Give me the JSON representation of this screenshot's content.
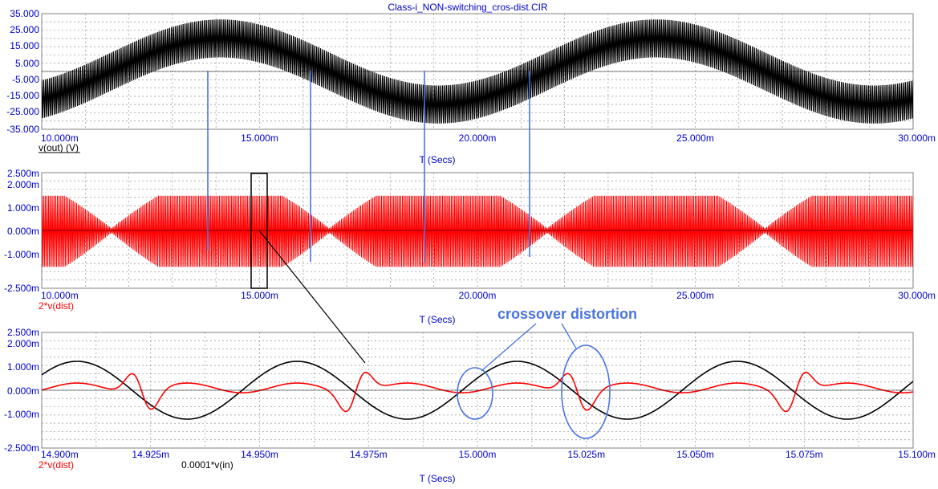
{
  "title": "Class-i_NON-switching_cros-dist.CIR",
  "colors": {
    "black": "#000000",
    "red": "#ff0000",
    "blue": "#0000cc",
    "annotation": "#4a74e0",
    "grid": "#909090"
  },
  "annotation": "crossover distortion",
  "chart_data": [
    {
      "type": "line",
      "xlabel": "T (Secs)",
      "xlim": [
        0.01,
        0.03
      ],
      "ylim": [
        -35,
        35
      ],
      "y_ticks": [
        "35.000",
        "25.000",
        "15.000",
        "5.000",
        "-5.000",
        "-15.000",
        "-25.000",
        "-35.000"
      ],
      "x_ticks": [
        "10.000m",
        "15.000m",
        "20.000m",
        "25.000m",
        "30.000m"
      ],
      "series": [
        {
          "name": "v(out) (V)",
          "color": "#000000",
          "envelope": {
            "center_amplitude": 20,
            "center_freq_hz": 100,
            "center_phase_deg": -90,
            "ripple_peak_to_peak": 20,
            "carrier": "dense"
          }
        }
      ]
    },
    {
      "type": "line",
      "xlabel": "T (Secs)",
      "xlim": [
        0.01,
        0.03
      ],
      "ylim": [
        -2.5,
        2.5
      ],
      "y_ticks": [
        "2.500m",
        "2.000m",
        "1.000m",
        "0.000m",
        "-1.000m",
        "-2.500m"
      ],
      "x_ticks": [
        "10.000m",
        "15.000m",
        "20.000m",
        "25.000m",
        "30.000m"
      ],
      "series": [
        {
          "name": "2*v(dist)",
          "color": "#ff0000",
          "envelope": {
            "max": 1.5,
            "min": 0.1,
            "carrier": "dense"
          }
        }
      ]
    },
    {
      "type": "line",
      "xlabel": "T (Secs)",
      "xlim": [
        0.0149,
        0.0151
      ],
      "ylim": [
        -2.5,
        2.5
      ],
      "y_ticks": [
        "2.500m",
        "2.000m",
        "1.000m",
        "0.000m",
        "-1.000m",
        "-2.500m"
      ],
      "x_ticks": [
        "14.900m",
        "14.925m",
        "14.950m",
        "14.975m",
        "15.000m",
        "15.025m",
        "15.050m",
        "15.075m",
        "15.100m"
      ],
      "series": [
        {
          "name": "2*v(dist)",
          "color": "#ff0000",
          "crossover_spikes_at": [
            0.014923,
            0.014972,
            0.015023,
            0.015073
          ]
        },
        {
          "name": "0.0001*v(in)",
          "color": "#000000",
          "amplitude": 1.25,
          "period": 5.05e-05,
          "zero_crossing_up": 0.014946
        }
      ]
    }
  ]
}
